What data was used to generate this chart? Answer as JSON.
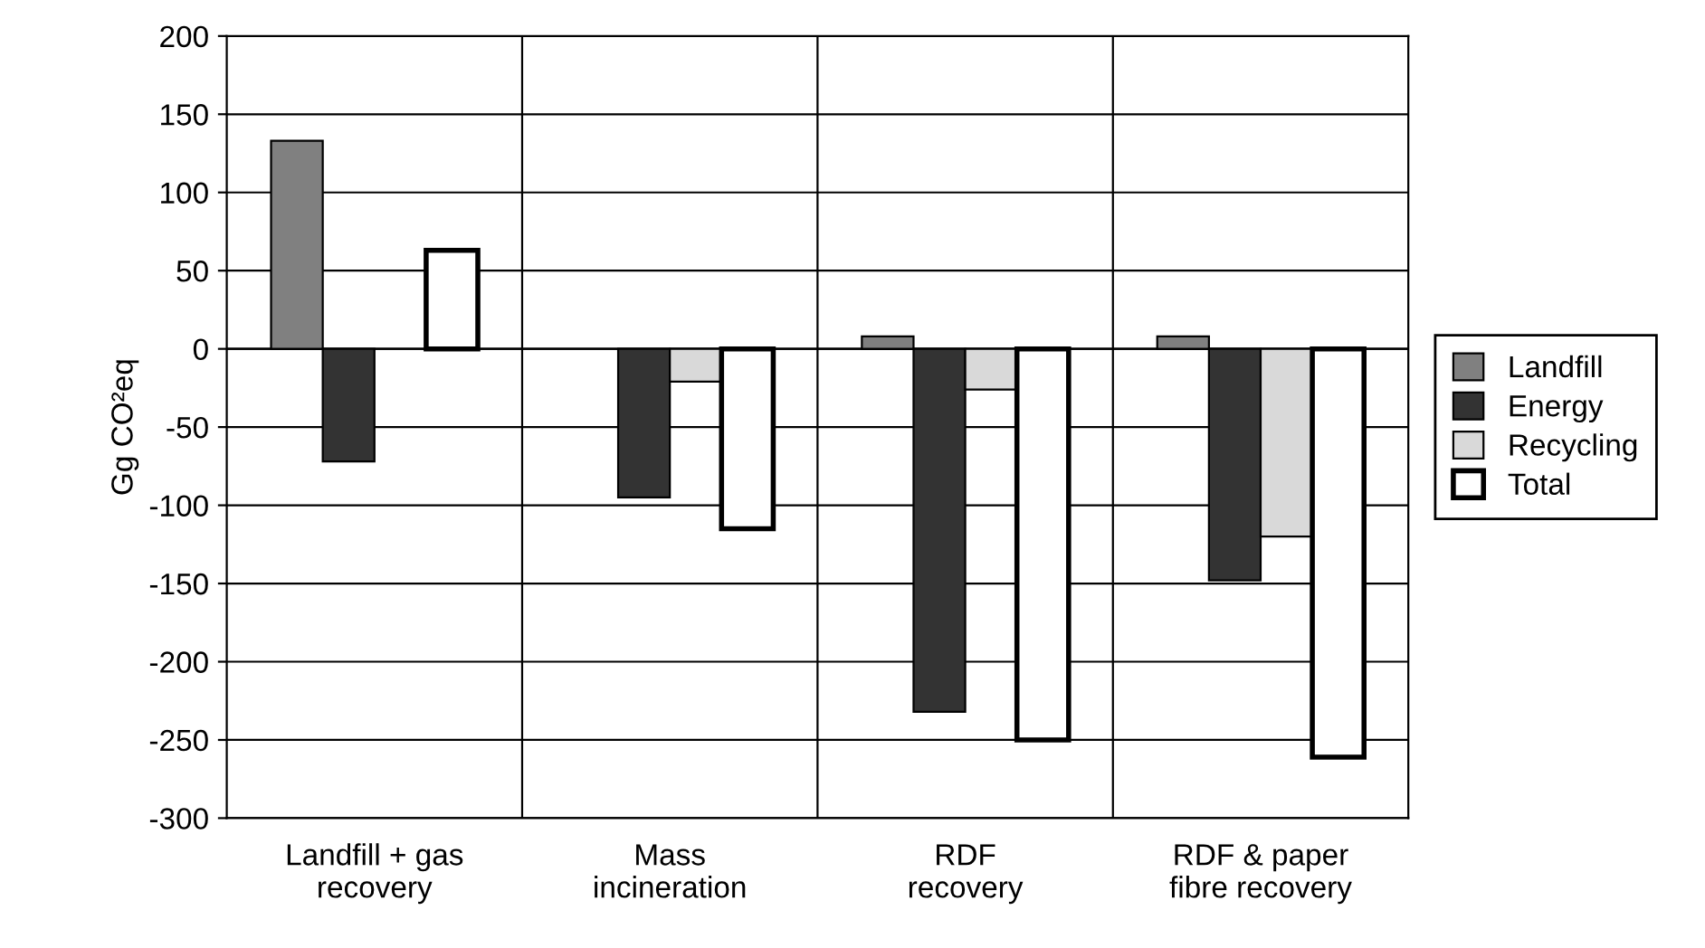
{
  "chart_data": {
    "type": "bar",
    "ylabel": "Gg CO²eq",
    "categories": [
      "Landfill + gas\nrecovery",
      "Mass\nincineration",
      "RDF\nrecovery",
      "RDF & paper\nfibre recovery"
    ],
    "series": [
      {
        "name": "Landfill",
        "color": "#808080",
        "values": [
          133,
          null,
          8,
          8
        ]
      },
      {
        "name": "Energy",
        "color": "#333333",
        "values": [
          -72,
          -95,
          -232,
          -148
        ]
      },
      {
        "name": "Recycling",
        "color": "#d9d9d9",
        "values": [
          null,
          -21,
          -26,
          -120
        ]
      },
      {
        "name": "Total",
        "color": "#ffffff",
        "values": [
          63,
          -115,
          -250,
          -261
        ]
      }
    ],
    "ylim": [
      -300,
      200
    ],
    "yticks": [
      -300,
      -250,
      -200,
      -150,
      -100,
      -50,
      0,
      50,
      100,
      150,
      200
    ],
    "grid": true,
    "legend": "right"
  }
}
